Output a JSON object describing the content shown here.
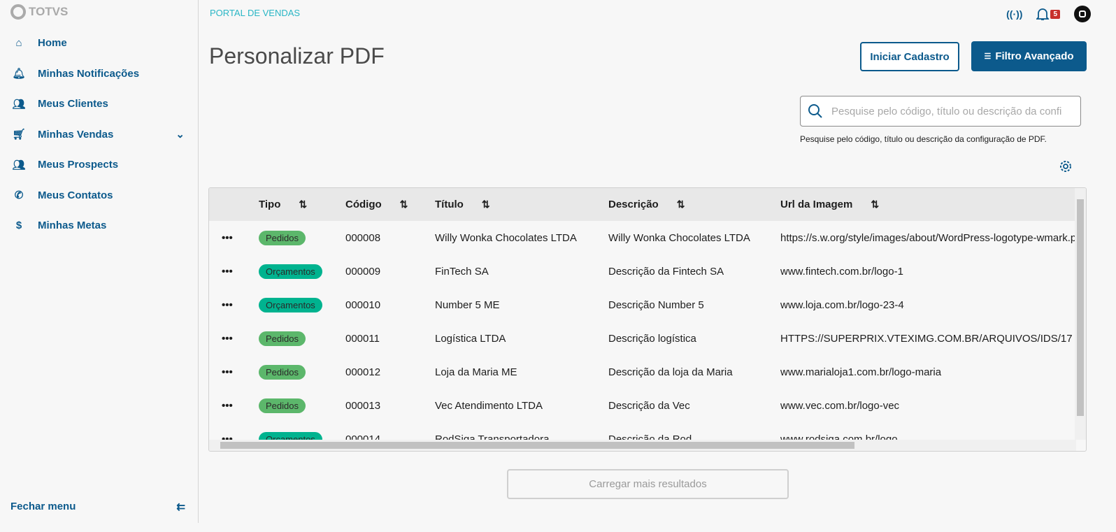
{
  "brand": "TOTVS",
  "sidebar": {
    "items": [
      {
        "label": "Home",
        "icon": "home-icon"
      },
      {
        "label": "Minhas Notificações",
        "icon": "bell-icon"
      },
      {
        "label": "Meus Clientes",
        "icon": "users-icon"
      },
      {
        "label": "Minhas Vendas",
        "icon": "cart-icon",
        "expandable": true
      },
      {
        "label": "Meus Prospects",
        "icon": "users-icon"
      },
      {
        "label": "Meus Contatos",
        "icon": "phone-icon"
      },
      {
        "label": "Minhas Metas",
        "icon": "dollar-icon"
      }
    ],
    "close_label": "Fechar menu"
  },
  "header": {
    "portal": "PORTAL DE VENDAS",
    "notifications_count": "5"
  },
  "page": {
    "title": "Personalizar PDF",
    "start_button": "Iniciar Cadastro",
    "filter_button": "Filtro Avançado",
    "search_placeholder": "Pesquise pelo código, título ou descrição da configuração de PDF.",
    "search_help": "Pesquise pelo código, título ou descrição da configuração de PDF.",
    "load_more": "Carregar mais resultados"
  },
  "colors": {
    "primary": "#0c5a8c",
    "pedidos": "#5cb76b",
    "orcamentos": "#00b38f"
  },
  "table": {
    "columns": [
      "Tipo",
      "Código",
      "Título",
      "Descrição",
      "Url da Imagem"
    ],
    "rows": [
      {
        "tipo": "Pedidos",
        "codigo": "000008",
        "titulo": "Willy Wonka Chocolates LTDA",
        "descricao": "Willy Wonka Chocolates LTDA",
        "url": "https://s.w.org/style/images/about/WordPress-logotype-wmark.png"
      },
      {
        "tipo": "Orçamentos",
        "codigo": "000009",
        "titulo": "FinTech SA",
        "descricao": "Descrição da Fintech SA",
        "url": "www.fintech.com.br/logo-1"
      },
      {
        "tipo": "Orçamentos",
        "codigo": "000010",
        "titulo": "Number 5 ME",
        "descricao": "Descrição Number 5",
        "url": "www.loja.com.br/logo-23-4"
      },
      {
        "tipo": "Pedidos",
        "codigo": "000011",
        "titulo": "Logística LTDA",
        "descricao": "Descrição logística",
        "url": "HTTPS://SUPERPRIX.VTEXIMG.COM.BR/ARQUIVOS/IDS/17"
      },
      {
        "tipo": "Pedidos",
        "codigo": "000012",
        "titulo": "Loja da Maria ME",
        "descricao": "Descrição da loja da Maria",
        "url": "www.marialoja1.com.br/logo-maria"
      },
      {
        "tipo": "Pedidos",
        "codigo": "000013",
        "titulo": "Vec Atendimento LTDA",
        "descricao": "Descrição da Vec",
        "url": "www.vec.com.br/logo-vec"
      },
      {
        "tipo": "Orçamentos",
        "codigo": "000014",
        "titulo": "RodSiga Transportadora",
        "descricao": "Descrição da Rod",
        "url": "www.rodsiga.com.br/logo"
      }
    ]
  }
}
